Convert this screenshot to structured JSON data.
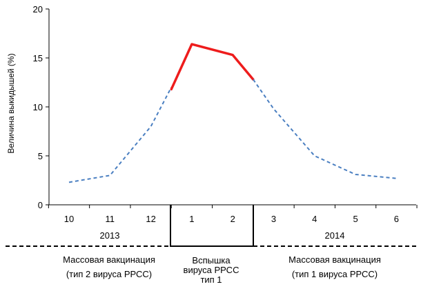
{
  "chart_data": {
    "type": "line",
    "ylabel": "Величина выкидышей (%)",
    "ylim": [
      0,
      20
    ],
    "yticks": [
      0,
      5,
      10,
      15,
      20
    ],
    "categories": [
      "10",
      "11",
      "12",
      "1",
      "2",
      "3",
      "4",
      "5",
      "6"
    ],
    "years": [
      {
        "label": "2013",
        "categories": [
          "10",
          "11",
          "12"
        ]
      },
      {
        "label": "2014",
        "categories": [
          "1",
          "2",
          "3",
          "4",
          "5",
          "6"
        ]
      }
    ],
    "series": [
      {
        "x": [
          10,
          11,
          12,
          12.5
        ],
        "y": [
          2.3,
          3.0,
          8.0,
          12.0
        ],
        "color": "#4a7fc1",
        "style": "dashed"
      },
      {
        "x": [
          12.5,
          1,
          2,
          2.5
        ],
        "y": [
          11.8,
          16.4,
          15.3,
          12.8
        ],
        "color": "#ee1c1c",
        "style": "solid"
      },
      {
        "x": [
          2.5,
          3,
          4,
          5,
          6
        ],
        "y": [
          12.8,
          9.8,
          5.0,
          3.1,
          2.7
        ],
        "color": "#4a7fc1",
        "style": "dashed"
      }
    ],
    "grid": false,
    "legend": "none"
  },
  "periods": [
    {
      "line1": "Массовая вакцинация",
      "line2": "(тип 2 вируса РРСС)"
    },
    {
      "line1": "Вспышка",
      "line2": "вируса РРСС",
      "line3": "тип 1"
    },
    {
      "line1": "Массовая вакцинация",
      "line2": "(тип 1 вируса РРСС)"
    }
  ]
}
